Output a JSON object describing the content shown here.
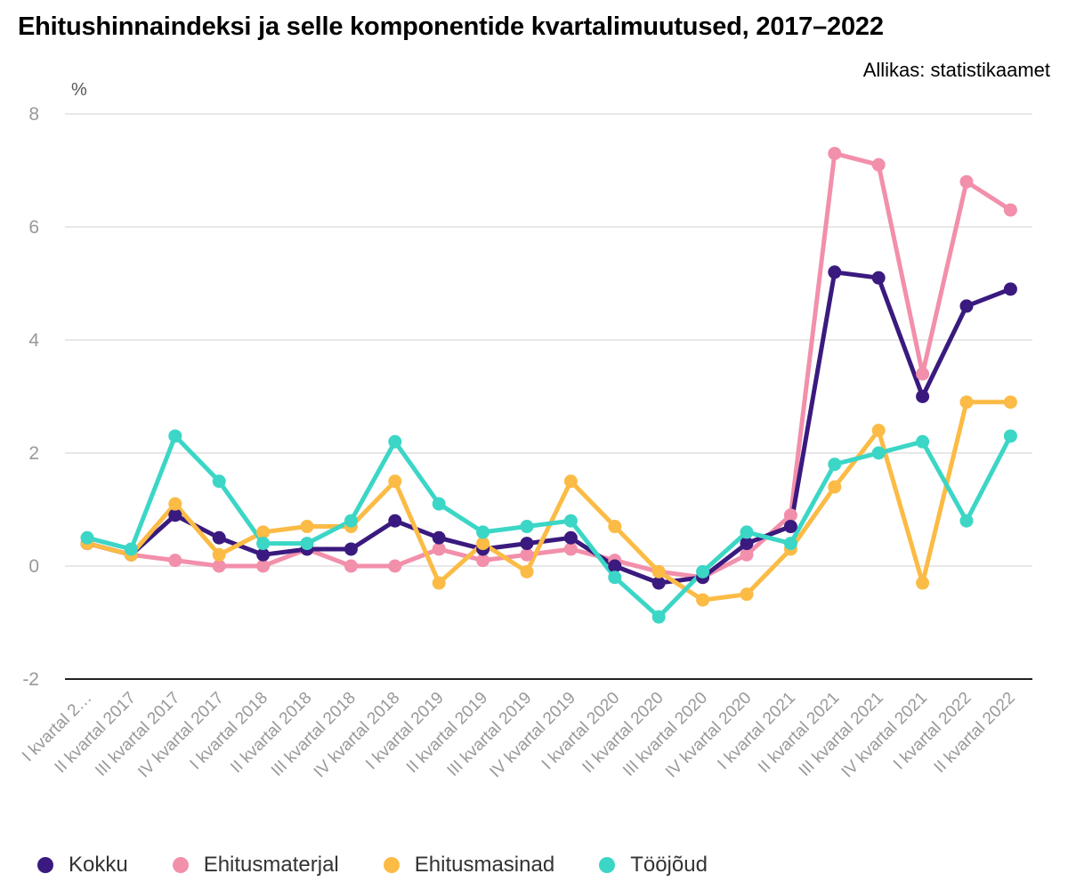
{
  "title": "Ehitushinnaindeksi ja selle komponentide kvartalimuutused, 2017–2022",
  "source": "Allikas: statistikaamet",
  "chart_data": {
    "type": "line",
    "ylabel": "%",
    "ylim": [
      -2,
      8
    ],
    "yticks": [
      -2,
      0,
      2,
      4,
      6,
      8
    ],
    "grid": true,
    "legend_position": "bottom",
    "categories": [
      "I kvartal 2…",
      "II kvartal 2017",
      "III kvartal 2017",
      "IV kvartal 2017",
      "I kvartal 2018",
      "II kvartal 2018",
      "III kvartal 2018",
      "IV kvartal 2018",
      "I kvartal 2019",
      "II kvartal 2019",
      "III kvartal 2019",
      "IV kvartal 2019",
      "I kvartal 2020",
      "II kvartal 2020",
      "III kvartal 2020",
      "IV kvartal 2020",
      "I kvartal 2021",
      "II kvartal 2021",
      "III kvartal 2021",
      "IV kvartal 2021",
      "I kvartal 2022",
      "II kvartal 2022"
    ],
    "series": [
      {
        "name": "Ehitusmaterjal",
        "color": "#f28fab",
        "values": [
          0.4,
          0.2,
          0.1,
          0.0,
          0.0,
          0.3,
          0.0,
          0.0,
          0.3,
          0.1,
          0.2,
          0.3,
          0.1,
          -0.1,
          -0.2,
          0.2,
          0.9,
          7.3,
          7.1,
          3.4,
          6.8,
          6.3
        ]
      },
      {
        "name": "Kokku",
        "color": "#3a1a7e",
        "values": [
          0.4,
          0.2,
          0.9,
          0.5,
          0.2,
          0.3,
          0.3,
          0.8,
          0.5,
          0.3,
          0.4,
          0.5,
          0.0,
          -0.3,
          -0.2,
          0.4,
          0.7,
          5.2,
          5.1,
          3.0,
          4.6,
          4.9
        ]
      },
      {
        "name": "Ehitusmasinad",
        "color": "#fbbb45",
        "values": [
          0.4,
          0.2,
          1.1,
          0.2,
          0.6,
          0.7,
          0.7,
          1.5,
          -0.3,
          0.4,
          -0.1,
          1.5,
          0.7,
          -0.1,
          -0.6,
          -0.5,
          0.3,
          1.4,
          2.4,
          -0.3,
          2.9,
          2.9
        ]
      },
      {
        "name": "Tööjõud",
        "color": "#3bd6c6",
        "values": [
          0.5,
          0.3,
          2.3,
          1.5,
          0.4,
          0.4,
          0.8,
          2.2,
          1.1,
          0.6,
          0.7,
          0.8,
          -0.2,
          -0.9,
          -0.1,
          0.6,
          0.4,
          1.8,
          2.0,
          2.2,
          0.8,
          2.3
        ]
      }
    ]
  },
  "legend": [
    {
      "name": "Kokku",
      "color": "#3a1a7e"
    },
    {
      "name": "Ehitusmaterjal",
      "color": "#f28fab"
    },
    {
      "name": "Ehitusmasinad",
      "color": "#fbbb45"
    },
    {
      "name": "Tööjõud",
      "color": "#3bd6c6"
    }
  ]
}
